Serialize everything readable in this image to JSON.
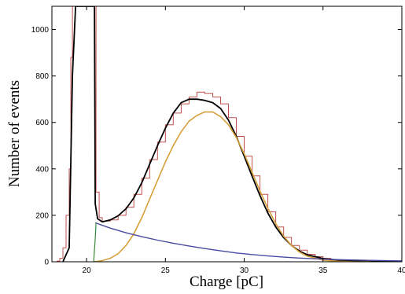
{
  "chart_data": {
    "type": "line",
    "xlabel": "Charge [pC]",
    "ylabel": "Number of events",
    "xlim": [
      17.8,
      40
    ],
    "ylim": [
      0,
      1100
    ],
    "x_ticks": [
      20,
      25,
      30,
      35,
      40
    ],
    "x_tick_labels": [
      "20",
      "25",
      "30",
      "35",
      "40"
    ],
    "y_ticks": [
      0,
      200,
      400,
      600,
      800,
      1000
    ],
    "y_tick_labels": [
      "0",
      "200",
      "400",
      "600",
      "800",
      "1000"
    ],
    "grid": false,
    "colors": {
      "histogram": "#c0504d",
      "total_fit": "#000000",
      "signal": "#d6a03a",
      "background": "#4a4aa0",
      "pedestal_edge": "#3a8a3a"
    },
    "series": [
      {
        "role": "histogram",
        "x": [
          18.1,
          18.3,
          18.5,
          18.7,
          18.9,
          19.0,
          19.1,
          19.2,
          19.4,
          19.6,
          19.8,
          20.0,
          20.2,
          20.4,
          20.5,
          20.6,
          20.8,
          21.0,
          21.5,
          22.0,
          22.5,
          23.0,
          23.5,
          24.0,
          24.5,
          25.0,
          25.5,
          26.0,
          26.5,
          27.0,
          27.5,
          28.0,
          28.5,
          29.0,
          29.5,
          30.0,
          30.5,
          31.0,
          31.5,
          32.0,
          32.5,
          33.0,
          33.5,
          34.0,
          34.5,
          35.0,
          35.5,
          36.0,
          37.0,
          38.0,
          39.0,
          40.0
        ],
        "y": [
          3,
          15,
          60,
          200,
          400,
          880,
          1100,
          1100,
          1100,
          1100,
          1100,
          1100,
          1100,
          1100,
          1100,
          300,
          190,
          175,
          180,
          200,
          235,
          290,
          360,
          440,
          515,
          590,
          640,
          680,
          710,
          730,
          725,
          710,
          680,
          620,
          540,
          455,
          370,
          290,
          215,
          150,
          105,
          70,
          50,
          32,
          22,
          15,
          10,
          7,
          4,
          2,
          1,
          0
        ]
      },
      {
        "role": "total_fit",
        "x": [
          18.5,
          18.9,
          19.1,
          19.3,
          20.5,
          20.55,
          20.7,
          21.0,
          21.5,
          22.0,
          22.5,
          23.0,
          23.5,
          24.0,
          24.5,
          25.0,
          25.5,
          26.0,
          26.5,
          27.0,
          27.5,
          28.0,
          28.5,
          29.0,
          29.5,
          30.0,
          30.5,
          31.0,
          31.5,
          32.0,
          32.5,
          33.0,
          33.5,
          34.0,
          35.0,
          36.0,
          37.0,
          38.0,
          40.0
        ],
        "y": [
          0,
          60,
          800,
          1100,
          1100,
          250,
          185,
          172,
          180,
          198,
          228,
          275,
          340,
          420,
          500,
          575,
          640,
          685,
          700,
          700,
          695,
          685,
          660,
          610,
          540,
          455,
          368,
          285,
          210,
          150,
          104,
          70,
          46,
          30,
          14,
          6,
          3,
          1,
          0
        ]
      },
      {
        "role": "signal",
        "x": [
          20.5,
          21.0,
          21.5,
          22.0,
          22.5,
          23.0,
          23.5,
          24.0,
          24.5,
          25.0,
          25.5,
          26.0,
          26.5,
          27.0,
          27.5,
          28.0,
          28.5,
          29.0,
          29.5,
          30.0,
          30.5,
          31.0,
          31.5,
          32.0,
          32.5,
          33.0,
          33.5,
          34.0,
          35.0,
          36.0,
          37.0,
          38.0
        ],
        "y": [
          0,
          5,
          15,
          35,
          70,
          120,
          190,
          270,
          350,
          430,
          500,
          560,
          605,
          630,
          645,
          645,
          625,
          590,
          535,
          465,
          385,
          305,
          230,
          165,
          110,
          70,
          42,
          24,
          7,
          2,
          0,
          0
        ]
      },
      {
        "role": "background",
        "x": [
          20.55,
          21.5,
          22.5,
          23.5,
          24.5,
          25.5,
          26.5,
          27.5,
          28.5,
          29.5,
          30.5,
          31.5,
          32.5,
          33.5,
          34.5,
          35.5,
          36.5,
          38.0,
          40.0
        ],
        "y": [
          168,
          145,
          125,
          108,
          93,
          80,
          68,
          57,
          47,
          38,
          31,
          25,
          20,
          16,
          13,
          10,
          8,
          6,
          4
        ]
      },
      {
        "role": "pedestal_edge",
        "x": [
          20.45,
          20.55,
          20.6
        ],
        "y": [
          0,
          100,
          168
        ]
      }
    ]
  }
}
